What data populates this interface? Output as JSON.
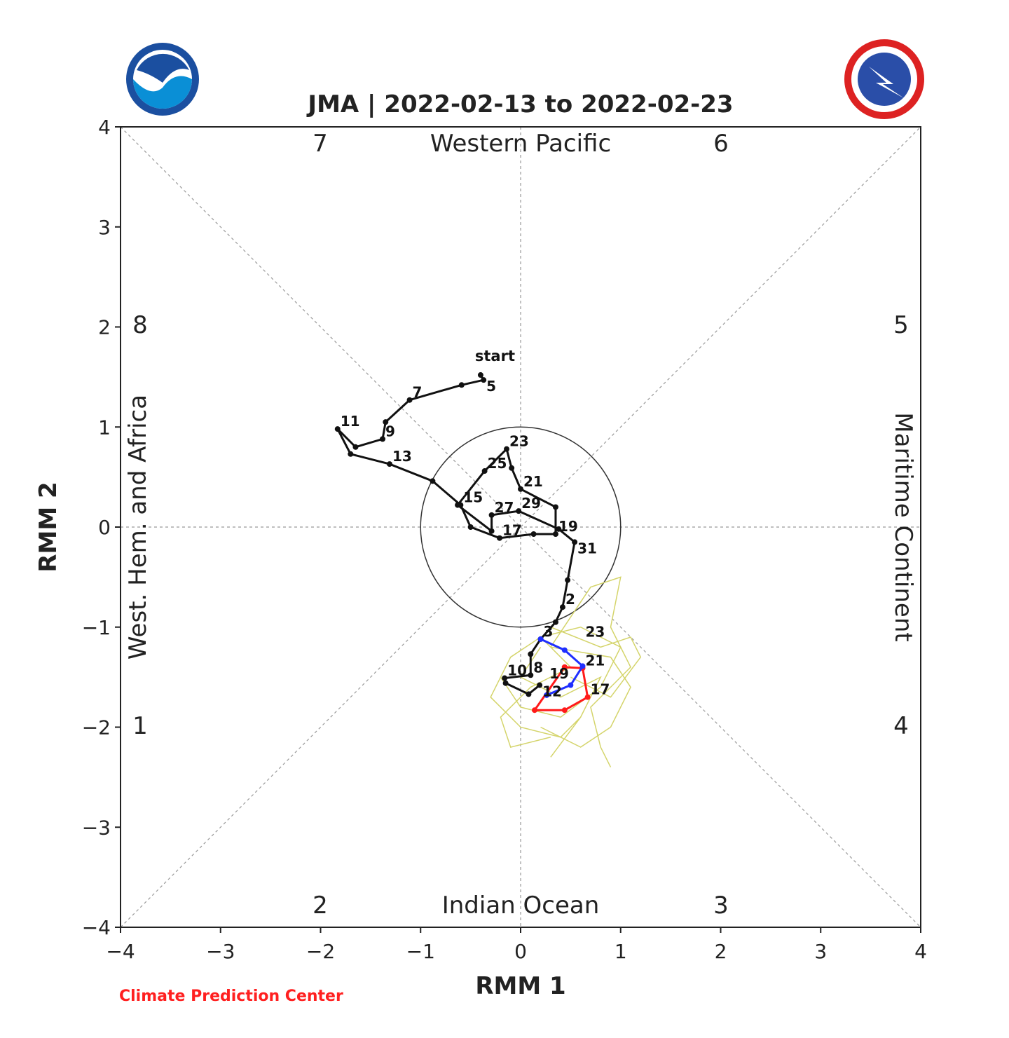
{
  "chart_data": {
    "type": "line",
    "title": "JMA | 2022-02-13 to 2022-02-23",
    "xlabel": "RMM 1",
    "ylabel": "RMM 2",
    "xlim": [
      -4,
      4
    ],
    "ylim": [
      -4,
      4
    ],
    "xticks": [
      "−4",
      "−3",
      "−2",
      "−1",
      "0",
      "1",
      "2",
      "3",
      "4"
    ],
    "yticks": [
      "4",
      "3",
      "2",
      "1",
      "0",
      "−1",
      "−2",
      "−3",
      "−4"
    ],
    "grid": "diagonal dashed phase lines",
    "regions": {
      "top": "Western Pacific",
      "bottom": "Indian Ocean",
      "left": "West. Hem. and Africa",
      "right": "Maritime Continent"
    },
    "phases": [
      "1",
      "2",
      "3",
      "4",
      "5",
      "6",
      "7",
      "8"
    ],
    "start_label": "start",
    "observed": [
      [
        -0.4,
        1.52
      ],
      [
        -0.37,
        1.47
      ],
      [
        -0.59,
        1.42
      ],
      [
        -1.11,
        1.27
      ],
      [
        -1.35,
        1.05
      ],
      [
        -1.38,
        0.88
      ],
      [
        -1.65,
        0.8
      ],
      [
        -1.83,
        0.98
      ],
      [
        -1.7,
        0.73
      ],
      [
        -1.31,
        0.63
      ],
      [
        -0.88,
        0.46
      ],
      [
        -0.6,
        0.22
      ],
      [
        -0.5,
        0.0
      ],
      [
        -0.21,
        -0.11
      ],
      [
        0.13,
        -0.07
      ],
      [
        0.35,
        -0.07
      ],
      [
        0.35,
        0.2
      ],
      [
        0.0,
        0.38
      ],
      [
        -0.09,
        0.59
      ],
      [
        -0.14,
        0.78
      ],
      [
        -0.36,
        0.56
      ],
      [
        -0.63,
        0.22
      ],
      [
        -0.29,
        -0.04
      ],
      [
        -0.29,
        0.12
      ],
      [
        -0.02,
        0.16
      ],
      [
        0.38,
        -0.02
      ],
      [
        0.54,
        -0.15
      ],
      [
        0.47,
        -0.53
      ],
      [
        0.42,
        -0.8
      ],
      [
        0.35,
        -0.95
      ],
      [
        0.2,
        -1.12
      ],
      [
        0.1,
        -1.27
      ],
      [
        0.1,
        -1.48
      ],
      [
        -0.16,
        -1.51
      ],
      [
        -0.15,
        -1.56
      ],
      [
        0.08,
        -1.67
      ],
      [
        0.19,
        -1.58
      ]
    ],
    "observed_labels": [
      {
        "i": 1,
        "text": "5"
      },
      {
        "i": 3,
        "text": "7"
      },
      {
        "i": 5,
        "text": "9"
      },
      {
        "i": 7,
        "text": "11"
      },
      {
        "i": 9,
        "text": "13"
      },
      {
        "i": 11,
        "text": "15"
      },
      {
        "i": 20,
        "text": "25"
      },
      {
        "i": 15,
        "text": "19"
      },
      {
        "i": 17,
        "text": "21"
      },
      {
        "i": 19,
        "text": "23"
      },
      {
        "i": 23,
        "text": "27"
      },
      {
        "i": 13,
        "text": "17"
      },
      {
        "i": 24,
        "text": "29"
      },
      {
        "i": 26,
        "text": "31"
      },
      {
        "i": 28,
        "text": "2"
      },
      {
        "i": 30,
        "text": "3"
      },
      {
        "i": 32,
        "text": "8"
      },
      {
        "i": 33,
        "text": "10"
      },
      {
        "i": 36,
        "text": "12"
      }
    ],
    "forecast_blue": {
      "color": "#1f2fff",
      "points": [
        [
          0.2,
          -1.12
        ],
        [
          0.44,
          -1.23
        ],
        [
          0.62,
          -1.39
        ],
        [
          0.5,
          -1.58
        ],
        [
          0.26,
          -1.68
        ]
      ],
      "labels": [
        {
          "i": 2,
          "text": "23"
        },
        {
          "i": 4,
          "text": "19"
        }
      ]
    },
    "forecast_red": {
      "color": "#ff1a1a",
      "points": [
        [
          0.44,
          -1.4
        ],
        [
          0.62,
          -1.41
        ],
        [
          0.67,
          -1.7
        ],
        [
          0.44,
          -1.83
        ],
        [
          0.14,
          -1.83
        ],
        [
          0.44,
          -1.4
        ]
      ],
      "labels": [
        {
          "i": 1,
          "text": "21"
        },
        {
          "i": 2,
          "text": "17"
        }
      ]
    },
    "ensemble_color": "#d4d46a",
    "ensemble": [
      [
        [
          0.2,
          -1.1
        ],
        [
          0.6,
          -1.0
        ],
        [
          1.0,
          -1.2
        ],
        [
          0.8,
          -1.6
        ],
        [
          0.4,
          -1.9
        ],
        [
          0.0,
          -1.8
        ],
        [
          -0.2,
          -1.5
        ]
      ],
      [
        [
          0.3,
          -1.2
        ],
        [
          0.7,
          -0.6
        ],
        [
          1.0,
          -0.5
        ],
        [
          0.9,
          -1.0
        ],
        [
          1.1,
          -1.4
        ],
        [
          0.7,
          -1.8
        ],
        [
          0.8,
          -2.2
        ],
        [
          0.9,
          -2.4
        ]
      ],
      [
        [
          0.2,
          -1.1
        ],
        [
          -0.1,
          -1.3
        ],
        [
          -0.3,
          -1.7
        ],
        [
          0.0,
          -2.0
        ],
        [
          0.4,
          -2.1
        ],
        [
          0.6,
          -1.9
        ]
      ],
      [
        [
          0.3,
          -1.2
        ],
        [
          0.9,
          -1.3
        ],
        [
          1.1,
          -1.6
        ],
        [
          0.9,
          -2.0
        ],
        [
          0.6,
          -2.2
        ],
        [
          0.2,
          -2.0
        ]
      ],
      [
        [
          0.2,
          -1.1
        ],
        [
          0.5,
          -1.4
        ],
        [
          0.1,
          -1.6
        ],
        [
          -0.2,
          -1.9
        ],
        [
          -0.1,
          -2.2
        ],
        [
          0.3,
          -2.1
        ]
      ],
      [
        [
          0.3,
          -1.0
        ],
        [
          0.8,
          -1.2
        ],
        [
          1.1,
          -1.1
        ],
        [
          1.2,
          -1.3
        ],
        [
          0.9,
          -1.7
        ],
        [
          0.5,
          -1.5
        ]
      ],
      [
        [
          0.2,
          -1.2
        ],
        [
          0.0,
          -1.5
        ],
        [
          0.4,
          -1.7
        ],
        [
          0.8,
          -1.5
        ],
        [
          0.6,
          -1.9
        ],
        [
          0.3,
          -2.3
        ]
      ]
    ]
  },
  "footer": {
    "credit": "Climate Prediction Center"
  },
  "logos": {
    "left": "NOAA",
    "right": "National Weather Service"
  }
}
